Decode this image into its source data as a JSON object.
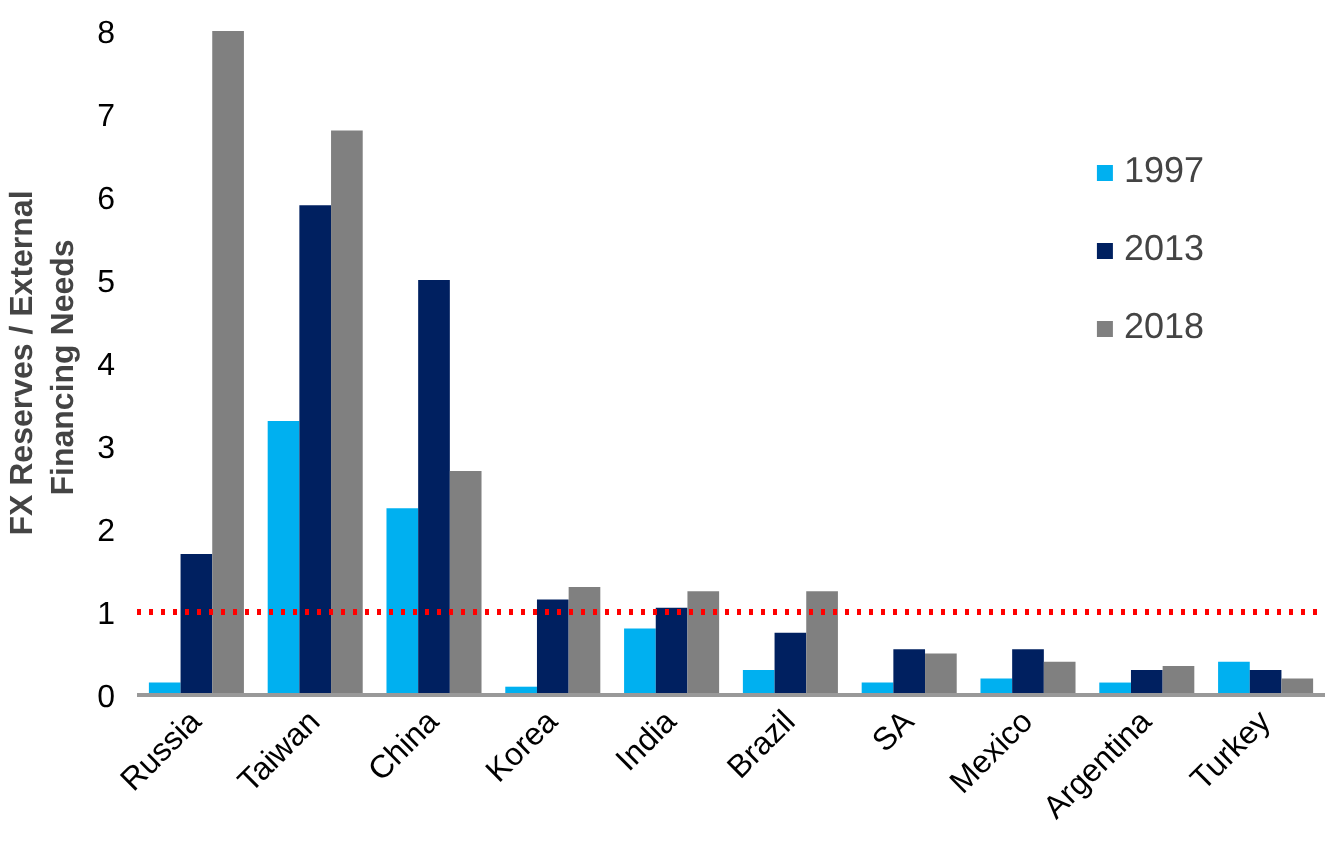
{
  "chart_data": {
    "type": "bar",
    "ylabel": "FX Reserves / External Financing  Needs",
    "categories": [
      "Russia",
      "Taiwan",
      "China",
      "Korea",
      "India",
      "Brazil",
      "SA",
      "Mexico",
      "Argentina",
      "Turkey"
    ],
    "series": [
      {
        "name": "1997",
        "color": "#00b0f0",
        "values": [
          0.15,
          3.3,
          2.25,
          0.1,
          0.8,
          0.3,
          0.15,
          0.2,
          0.15,
          0.4
        ]
      },
      {
        "name": "2013",
        "color": "#002060",
        "values": [
          1.7,
          5.9,
          5.0,
          1.15,
          1.05,
          0.75,
          0.55,
          0.55,
          0.3,
          0.3
        ]
      },
      {
        "name": "2018",
        "color": "#808080",
        "values": [
          8.0,
          6.8,
          2.7,
          1.3,
          1.25,
          1.25,
          0.5,
          0.4,
          0.35,
          0.2
        ]
      }
    ],
    "ylim": [
      0,
      8
    ],
    "yticks": [
      0,
      1,
      2,
      3,
      4,
      5,
      6,
      7,
      8
    ],
    "ref_lines": [
      {
        "axis": "y",
        "value": 1,
        "color": "#ff0000",
        "line_style": "dotted"
      }
    ],
    "grid": false,
    "legend": "top right"
  }
}
